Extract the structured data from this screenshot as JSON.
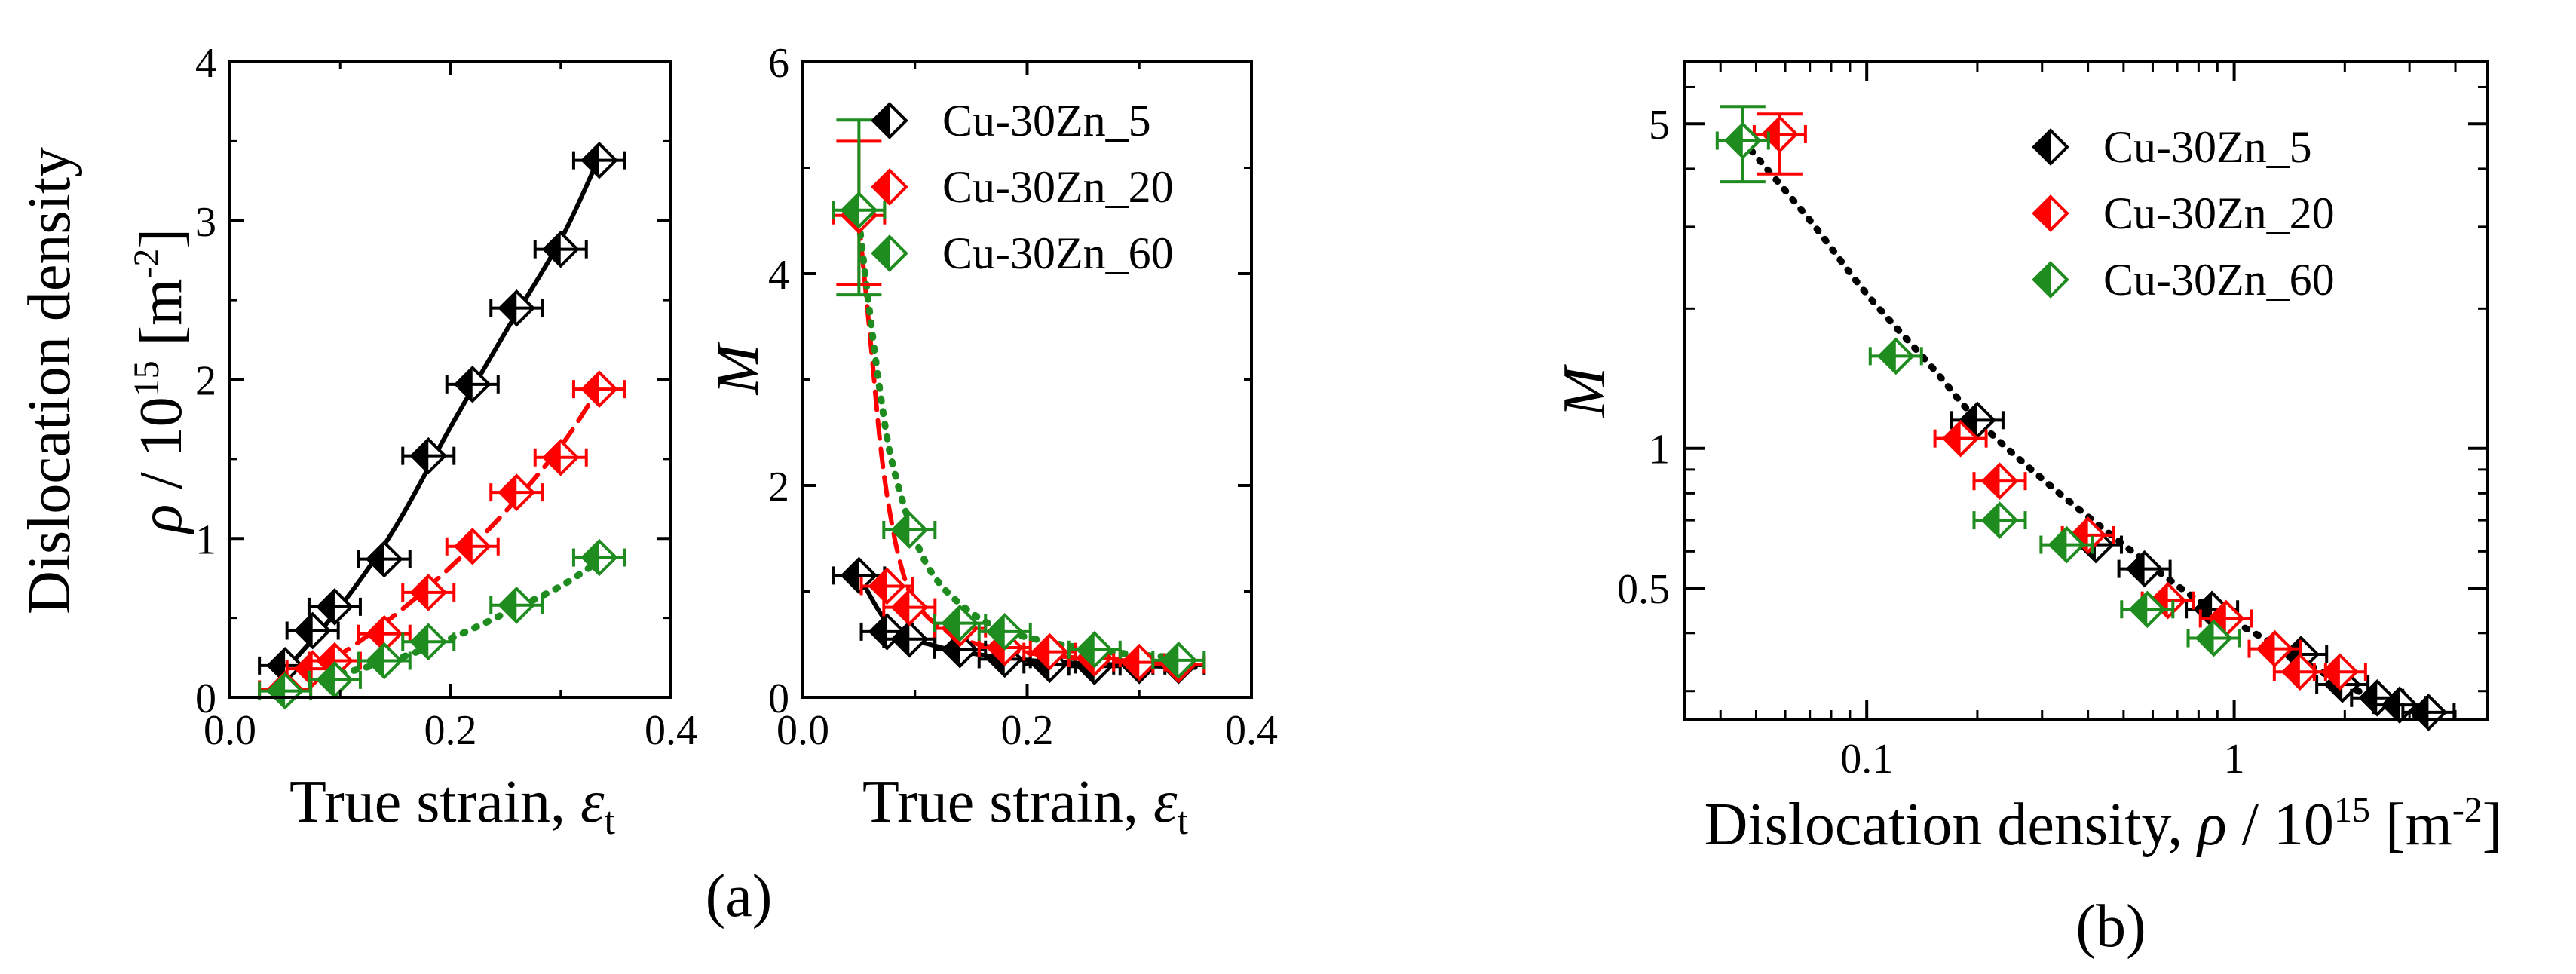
{
  "colors": {
    "black": "#000000",
    "red": "#ff0000",
    "green": "#1e8c1e"
  },
  "chart_data": [
    {
      "id": "a1",
      "type": "scatter",
      "xlim": [
        0.0,
        0.4
      ],
      "ylim": [
        0,
        4
      ],
      "xticks": [
        "0.0",
        "0.2",
        "0.4"
      ],
      "yticks": [
        "0",
        "1",
        "2",
        "3",
        "4"
      ],
      "xlabel_text": "True strain,",
      "xlabel_sym": "ε",
      "xlabel_sub": "t",
      "ylabel_line1": "Dislocation density",
      "ylabel_sym": "ρ",
      "ylabel_mid": " / 10",
      "ylabel_exp": "15",
      "ylabel_unit": " [m",
      "ylabel_unit_exp": "-2",
      "ylabel_close": "]",
      "series": [
        {
          "name": "Cu-30Zn_5",
          "color": "#000000",
          "line": "solid",
          "x": [
            0.05,
            0.075,
            0.095,
            0.14,
            0.18,
            0.22,
            0.26,
            0.3,
            0.335
          ],
          "y": [
            0.2,
            0.42,
            0.57,
            0.87,
            1.52,
            1.97,
            2.45,
            2.82,
            3.38
          ]
        },
        {
          "name": "Cu-30Zn_20",
          "color": "#ff0000",
          "line": "dashed",
          "x": [
            0.05,
            0.075,
            0.095,
            0.14,
            0.18,
            0.22,
            0.26,
            0.3,
            0.335
          ],
          "y": [
            0.05,
            0.18,
            0.23,
            0.4,
            0.66,
            0.95,
            1.29,
            1.51,
            1.94
          ]
        },
        {
          "name": "Cu-30Zn_60",
          "color": "#1e8c1e",
          "line": "dotted",
          "x": [
            0.05,
            0.095,
            0.14,
            0.18,
            0.26,
            0.335
          ],
          "y": [
            0.04,
            0.11,
            0.23,
            0.35,
            0.58,
            0.88
          ]
        }
      ],
      "fits": [
        {
          "color": "#000000",
          "line": "solid",
          "x": [
            0.05,
            0.1,
            0.15,
            0.2,
            0.25,
            0.3,
            0.335
          ],
          "y": [
            0.17,
            0.57,
            1.07,
            1.7,
            2.3,
            2.88,
            3.4
          ]
        },
        {
          "color": "#ff0000",
          "line": "dashed",
          "x": [
            0.07,
            0.1,
            0.15,
            0.2,
            0.25,
            0.3,
            0.335
          ],
          "y": [
            0.17,
            0.27,
            0.52,
            0.82,
            1.17,
            1.58,
            1.95
          ]
        },
        {
          "color": "#1e8c1e",
          "line": "dotted",
          "x": [
            0.09,
            0.15,
            0.2,
            0.25,
            0.3,
            0.335
          ],
          "y": [
            0.13,
            0.24,
            0.37,
            0.53,
            0.7,
            0.86
          ]
        }
      ]
    },
    {
      "id": "a2",
      "type": "scatter",
      "xlim": [
        0.0,
        0.4
      ],
      "ylim": [
        0,
        6
      ],
      "xticks": [
        "0.0",
        "0.2",
        "0.4"
      ],
      "yticks": [
        "0",
        "2",
        "4",
        "6"
      ],
      "xlabel_text": "True strain,",
      "xlabel_sym": "ε",
      "xlabel_sub": "t",
      "ylabel_sym": "M",
      "series": [
        {
          "name": "Cu-30Zn_5",
          "color": "#000000",
          "line": "solid",
          "x": [
            0.05,
            0.075,
            0.095,
            0.14,
            0.18,
            0.22,
            0.26,
            0.3,
            0.335
          ],
          "y": [
            1.15,
            0.62,
            0.55,
            0.45,
            0.36,
            0.31,
            0.29,
            0.3,
            0.3
          ]
        },
        {
          "name": "Cu-30Zn_20",
          "color": "#ff0000",
          "line": "dashed",
          "x": [
            0.05,
            0.075,
            0.095,
            0.14,
            0.18,
            0.22,
            0.26,
            0.3,
            0.335
          ],
          "y": [
            4.55,
            1.05,
            0.85,
            0.65,
            0.47,
            0.43,
            0.37,
            0.33,
            0.31
          ]
        },
        {
          "name": "Cu-30Zn_60",
          "color": "#1e8c1e",
          "line": "dotted",
          "x": [
            0.05,
            0.095,
            0.14,
            0.18,
            0.26,
            0.335
          ],
          "y": [
            4.6,
            1.58,
            0.7,
            0.62,
            0.45,
            0.35
          ]
        }
      ],
      "errorbars": [
        {
          "color": "#ff0000",
          "x": 0.05,
          "ylow": 3.9,
          "yhigh": 5.25
        },
        {
          "color": "#1e8c1e",
          "x": 0.05,
          "ylow": 3.8,
          "yhigh": 5.45
        }
      ],
      "fits": [
        {
          "color": "#000000",
          "line": "solid",
          "x": [
            0.05,
            0.08,
            0.12,
            0.16,
            0.2,
            0.25,
            0.3,
            0.35
          ],
          "y": [
            1.15,
            0.65,
            0.48,
            0.4,
            0.35,
            0.32,
            0.3,
            0.28
          ]
        },
        {
          "color": "#ff0000",
          "line": "dashed",
          "x": [
            0.05,
            0.06,
            0.07,
            0.08,
            0.09,
            0.1,
            0.12,
            0.15,
            0.2,
            0.25,
            0.3,
            0.35
          ],
          "y": [
            4.5,
            3.4,
            2.3,
            1.6,
            1.15,
            0.9,
            0.68,
            0.52,
            0.42,
            0.37,
            0.34,
            0.32
          ]
        },
        {
          "color": "#1e8c1e",
          "line": "dotted",
          "x": [
            0.05,
            0.06,
            0.07,
            0.08,
            0.1,
            0.12,
            0.15,
            0.18,
            0.22,
            0.26,
            0.3,
            0.35
          ],
          "y": [
            4.5,
            3.6,
            2.8,
            2.2,
            1.5,
            1.1,
            0.8,
            0.63,
            0.52,
            0.45,
            0.4,
            0.37
          ]
        }
      ],
      "legend": [
        "Cu-30Zn_5",
        "Cu-30Zn_20",
        "Cu-30Zn_60"
      ],
      "legend_position": "top-right"
    },
    {
      "id": "b",
      "type": "scatter",
      "xscale": "log",
      "yscale": "log",
      "xlim": [
        0.032,
        4.9
      ],
      "ylim": [
        0.26,
        6.8
      ],
      "xticks": [
        {
          "v": 0.1,
          "label": "0.1"
        },
        {
          "v": 1,
          "label": "1"
        }
      ],
      "yticks": [
        {
          "v": 0.5,
          "label": "0.5"
        },
        {
          "v": 1,
          "label": "1"
        },
        {
          "v": 5,
          "label": "5"
        }
      ],
      "xlabel_text": "Dislocation density,",
      "xlabel_sym": "ρ",
      "xlabel_mid": " / 10",
      "xlabel_exp": "15",
      "xlabel_unit": " [m",
      "xlabel_unit_exp": "-2",
      "xlabel_close": "]",
      "ylabel_sym": "M",
      "series": [
        {
          "name": "Cu-30Zn_5",
          "color": "#000000",
          "x": [
            0.2,
            0.42,
            0.57,
            0.87,
            1.52,
            1.97,
            2.45,
            2.82,
            3.38
          ],
          "y": [
            1.15,
            0.62,
            0.55,
            0.45,
            0.36,
            0.31,
            0.29,
            0.28,
            0.27
          ]
        },
        {
          "name": "Cu-30Zn_20",
          "color": "#ff0000",
          "x": [
            0.058,
            0.18,
            0.23,
            0.4,
            0.66,
            0.95,
            1.29,
            1.51,
            1.94
          ],
          "y": [
            4.75,
            1.05,
            0.85,
            0.65,
            0.47,
            0.43,
            0.37,
            0.33,
            0.33
          ]
        },
        {
          "name": "Cu-30Zn_60",
          "color": "#1e8c1e",
          "x": [
            0.046,
            0.12,
            0.23,
            0.35,
            0.58,
            0.88
          ],
          "y": [
            4.6,
            1.58,
            0.7,
            0.62,
            0.45,
            0.39
          ]
        }
      ],
      "errorbars": [
        {
          "color": "#ff0000",
          "x": 0.058,
          "ylow": 3.9,
          "yhigh": 5.25
        },
        {
          "color": "#1e8c1e",
          "x": 0.046,
          "ylow": 3.75,
          "yhigh": 5.45
        }
      ],
      "fits": [
        {
          "color": "#000000",
          "line": "dotted",
          "x": [
            0.046,
            0.07,
            0.1,
            0.15,
            0.2,
            0.3,
            0.5,
            0.8,
            1.2,
            2,
            3.3
          ],
          "y": [
            4.6,
            3.1,
            2.15,
            1.5,
            1.15,
            0.86,
            0.62,
            0.47,
            0.39,
            0.31,
            0.26
          ]
        }
      ],
      "legend": [
        "Cu-30Zn_5",
        "Cu-30Zn_20",
        "Cu-30Zn_60"
      ],
      "legend_position": "top-right"
    }
  ],
  "captions": {
    "a": "(a)",
    "b": "(b)"
  }
}
